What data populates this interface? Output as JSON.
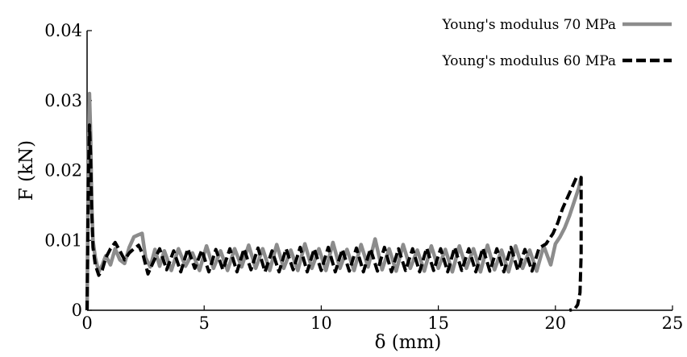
{
  "chart_data": {
    "type": "line",
    "xlabel": "δ (mm)",
    "ylabel": "F (kN)",
    "xlim": [
      0,
      25
    ],
    "ylim": [
      0,
      0.04
    ],
    "x_ticks": [
      0,
      5,
      10,
      15,
      20,
      25
    ],
    "x_tick_labels": [
      "0",
      "5",
      "10",
      "15",
      "20",
      "25"
    ],
    "y_ticks": [
      0,
      0.01,
      0.02,
      0.03,
      0.04
    ],
    "y_tick_labels": [
      "0",
      "0.01",
      "0.02",
      "0.03",
      "0.04"
    ],
    "grid": false,
    "legend_position": "top-right",
    "series": [
      {
        "name": "Young's modulus 70 MPa",
        "color": "#8c8c8c",
        "style": "solid",
        "x": [
          0,
          0.05,
          0.1,
          0.15,
          0.2,
          0.25,
          0.35,
          0.5,
          0.65,
          0.8,
          1.0,
          1.2,
          1.4,
          1.6,
          1.8,
          2.0,
          2.2,
          2.35,
          2.5,
          2.7,
          2.9,
          3.1,
          3.3,
          3.6,
          3.9,
          4.2,
          4.5,
          4.8,
          5.1,
          5.4,
          5.7,
          6.0,
          6.3,
          6.6,
          6.9,
          7.2,
          7.5,
          7.8,
          8.1,
          8.4,
          8.7,
          9.0,
          9.3,
          9.6,
          9.9,
          10.2,
          10.5,
          10.8,
          11.1,
          11.4,
          11.7,
          12.0,
          12.3,
          12.6,
          12.9,
          13.2,
          13.5,
          13.8,
          14.1,
          14.4,
          14.7,
          15.0,
          15.3,
          15.6,
          15.9,
          16.2,
          16.5,
          16.8,
          17.1,
          17.4,
          17.7,
          18.0,
          18.3,
          18.6,
          18.9,
          19.2,
          19.5,
          19.8,
          20.0,
          20.2,
          20.4,
          20.6,
          20.8,
          21.0,
          21.1
        ],
        "y": [
          0.0,
          0.02,
          0.031,
          0.025,
          0.015,
          0.01,
          0.0075,
          0.0055,
          0.0065,
          0.0078,
          0.0065,
          0.0088,
          0.0072,
          0.0067,
          0.009,
          0.0105,
          0.0108,
          0.011,
          0.0075,
          0.0062,
          0.0087,
          0.0063,
          0.0085,
          0.0057,
          0.0088,
          0.0063,
          0.0082,
          0.0057,
          0.0092,
          0.006,
          0.0085,
          0.0057,
          0.0088,
          0.0062,
          0.0093,
          0.006,
          0.0088,
          0.0057,
          0.0094,
          0.006,
          0.0086,
          0.0057,
          0.0095,
          0.006,
          0.0088,
          0.0057,
          0.0097,
          0.006,
          0.0087,
          0.0057,
          0.0094,
          0.0062,
          0.0102,
          0.0058,
          0.0088,
          0.0056,
          0.0094,
          0.006,
          0.0086,
          0.0056,
          0.0092,
          0.006,
          0.0087,
          0.0055,
          0.0092,
          0.006,
          0.0088,
          0.0055,
          0.0093,
          0.0058,
          0.0086,
          0.0055,
          0.0092,
          0.006,
          0.0086,
          0.0056,
          0.0092,
          0.0065,
          0.0095,
          0.0105,
          0.0118,
          0.0135,
          0.0155,
          0.0175,
          0.019
        ]
      },
      {
        "name": "Young's modulus 60 MPa",
        "color": "#000000",
        "style": "dashed",
        "x": [
          0,
          0.05,
          0.1,
          0.15,
          0.2,
          0.25,
          0.35,
          0.5,
          0.65,
          0.8,
          1.0,
          1.2,
          1.4,
          1.6,
          1.8,
          2.0,
          2.2,
          2.4,
          2.6,
          2.8,
          3.1,
          3.4,
          3.7,
          4.0,
          4.3,
          4.6,
          4.9,
          5.2,
          5.5,
          5.8,
          6.1,
          6.4,
          6.7,
          7.0,
          7.3,
          7.6,
          7.9,
          8.2,
          8.5,
          8.8,
          9.1,
          9.4,
          9.7,
          10.0,
          10.3,
          10.6,
          10.9,
          11.2,
          11.5,
          11.8,
          12.1,
          12.4,
          12.7,
          13.0,
          13.3,
          13.6,
          13.9,
          14.2,
          14.5,
          14.8,
          15.1,
          15.4,
          15.7,
          16.0,
          16.3,
          16.6,
          16.9,
          17.2,
          17.5,
          17.8,
          18.1,
          18.4,
          18.7,
          19.0,
          19.3,
          19.6,
          19.9,
          20.1,
          20.3,
          20.5,
          20.7,
          20.9,
          21.1,
          21.1,
          21.05,
          20.95,
          20.85,
          20.75,
          20.6
        ],
        "y": [
          0.0,
          0.018,
          0.0265,
          0.022,
          0.014,
          0.009,
          0.0065,
          0.005,
          0.0058,
          0.0075,
          0.0088,
          0.0097,
          0.0085,
          0.0072,
          0.0082,
          0.0088,
          0.0093,
          0.0078,
          0.0052,
          0.0067,
          0.0088,
          0.0058,
          0.0085,
          0.0055,
          0.0088,
          0.006,
          0.0086,
          0.0055,
          0.0087,
          0.0058,
          0.0088,
          0.0055,
          0.0088,
          0.0058,
          0.0089,
          0.0055,
          0.0085,
          0.0055,
          0.0088,
          0.0058,
          0.009,
          0.0055,
          0.0088,
          0.0057,
          0.009,
          0.0055,
          0.0087,
          0.0056,
          0.0089,
          0.0055,
          0.0088,
          0.0056,
          0.009,
          0.0055,
          0.0088,
          0.0057,
          0.0088,
          0.0055,
          0.0089,
          0.0057,
          0.0088,
          0.0055,
          0.009,
          0.0057,
          0.0088,
          0.0055,
          0.0089,
          0.0056,
          0.0088,
          0.0055,
          0.009,
          0.0057,
          0.0087,
          0.0056,
          0.0089,
          0.0095,
          0.011,
          0.0125,
          0.0145,
          0.016,
          0.0175,
          0.019,
          0.019,
          0.008,
          0.0025,
          0.0008,
          0.0003,
          0.0001,
          0.0
        ]
      }
    ]
  }
}
